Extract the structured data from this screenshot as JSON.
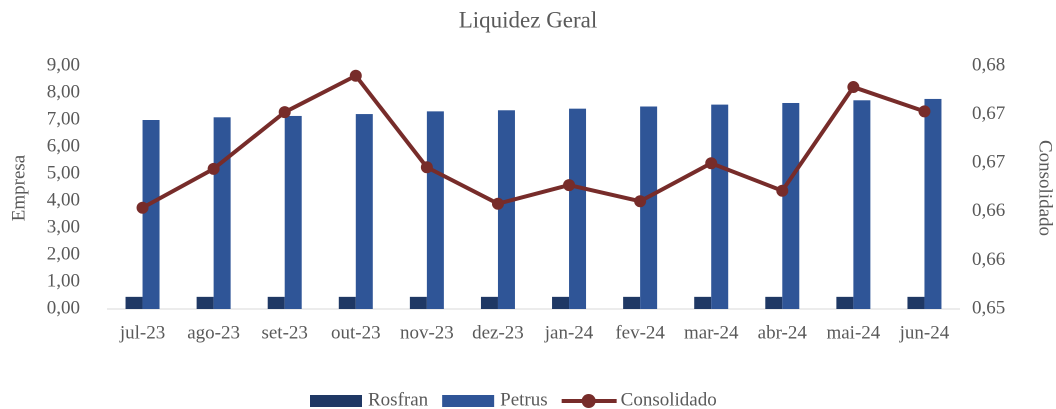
{
  "chart_data": {
    "type": "bar_line",
    "title": "Liquidez Geral",
    "y_label": "Empresa",
    "y2_label": "Consolidado",
    "categories": [
      "jul-23",
      "ago-23",
      "set-23",
      "out-23",
      "nov-23",
      "dez-23",
      "jan-24",
      "fev-24",
      "mar-24",
      "abr-24",
      "mai-24",
      "jun-24"
    ],
    "series": [
      {
        "name": "Rosfran",
        "color": "#1f3864",
        "kind": "bar",
        "values": [
          0.45,
          0.45,
          0.45,
          0.45,
          0.45,
          0.45,
          0.45,
          0.45,
          0.45,
          0.45,
          0.45,
          0.45
        ]
      },
      {
        "name": "Petrus",
        "color": "#2f5597",
        "kind": "bar",
        "values": [
          7.0,
          7.1,
          7.15,
          7.22,
          7.32,
          7.36,
          7.42,
          7.5,
          7.57,
          7.63,
          7.73,
          7.78
        ]
      },
      {
        "name": "Consolidado",
        "color": "#772c2a",
        "kind": "line",
        "axis": "y2",
        "values": [
          0.6625,
          0.6673,
          0.6743,
          0.6788,
          0.6675,
          0.663,
          0.6653,
          0.6633,
          0.668,
          0.6646,
          0.6774,
          0.6744
        ]
      }
    ],
    "ylim": [
      0,
      9
    ],
    "yticks": [
      {
        "value": 0,
        "label": "0,00"
      },
      {
        "value": 1,
        "label": "1,00"
      },
      {
        "value": 2,
        "label": "2,00"
      },
      {
        "value": 3,
        "label": "3,00"
      },
      {
        "value": 4,
        "label": "4,00"
      },
      {
        "value": 5,
        "label": "5,00"
      },
      {
        "value": 6,
        "label": "6,00"
      },
      {
        "value": 7,
        "label": "7,00"
      },
      {
        "value": 8,
        "label": "8,00"
      },
      {
        "value": 9,
        "label": "9,00"
      }
    ],
    "y2lim": [
      0.65,
      0.68
    ],
    "y2ticks": [
      {
        "value": 0.65,
        "label": "0,65"
      },
      {
        "value": 0.656,
        "label": "0,66"
      },
      {
        "value": 0.662,
        "label": "0,66"
      },
      {
        "value": 0.668,
        "label": "0,67"
      },
      {
        "value": 0.674,
        "label": "0,67"
      },
      {
        "value": 0.68,
        "label": "0,68"
      }
    ],
    "legend": "bottom"
  }
}
